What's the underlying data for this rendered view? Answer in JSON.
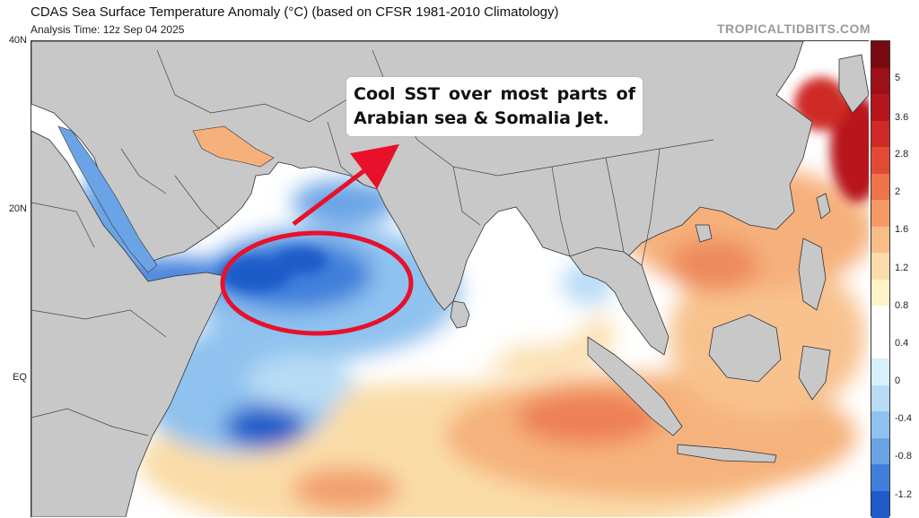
{
  "header": {
    "title": "CDAS Sea Surface Temperature Anomaly (°C) (based on CFSR 1981-2010 Climatology)",
    "analysis_time": "Analysis Time: 12z Sep 04 2025",
    "brand": "TROPICALTIDBITS.COM"
  },
  "map": {
    "latitude_labels": [
      "40N",
      "20N",
      "EQ"
    ],
    "annotation": "Cool SST over most parts of Arabian sea & Somalia Jet.",
    "colors": {
      "land": "#c8c8c8",
      "border": "#444444",
      "annotation_circle": "#e8102a",
      "annotation_arrow": "#e8102a"
    }
  },
  "colorbar": {
    "unit": "°C",
    "labels": [
      "5",
      "3.6",
      "2.8",
      "2",
      "1.6",
      "1.2",
      "0.8",
      "0.4",
      "0",
      "-0.4",
      "-0.8",
      "-1.2"
    ],
    "colors": [
      "#7a0a12",
      "#9c1018",
      "#b8161d",
      "#cf2a25",
      "#e24a35",
      "#ef7449",
      "#f59a66",
      "#f9bd88",
      "#fcdcaa",
      "#fff3c8",
      "#ffffff",
      "#ffffff",
      "#d8f0fb",
      "#b8dcf5",
      "#8fc2ef",
      "#6aa4e6",
      "#3f7fdb",
      "#1f5cc9"
    ]
  }
}
